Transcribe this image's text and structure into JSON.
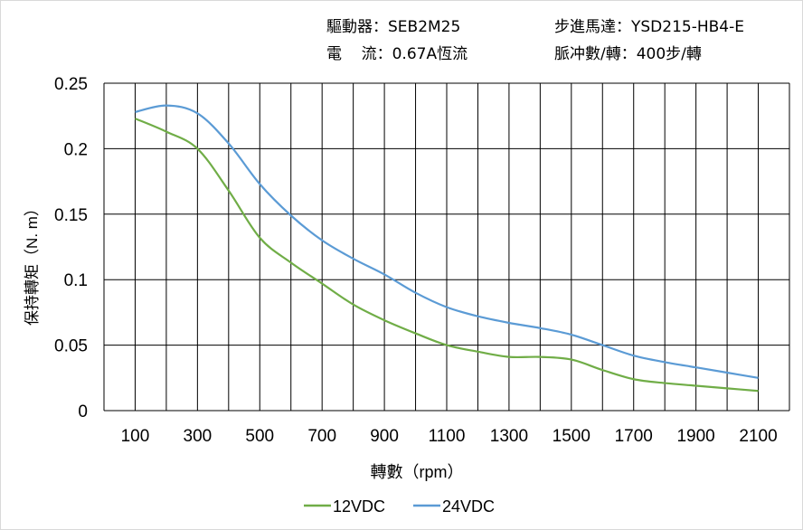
{
  "header": {
    "driver": "驅動器：SEB2M25",
    "motor": "步進馬達：YSD215-HB4-E",
    "current": "電    流：0.67A恆流",
    "pulses": "脈冲數/轉：400步/轉"
  },
  "chart_data": {
    "type": "line",
    "title": "",
    "xlabel": "轉數（rpm）",
    "ylabel": "保持轉矩（N. m）",
    "xlim": [
      0,
      2200
    ],
    "ylim": [
      0,
      0.25
    ],
    "grid": true,
    "legend_position": "bottom",
    "x_ticks": [
      "100",
      "300",
      "500",
      "700",
      "900",
      "1100",
      "1300",
      "1500",
      "1700",
      "1900",
      "2100"
    ],
    "y_ticks": [
      "0",
      "0.05",
      "0.1",
      "0.15",
      "0.2",
      "0.25"
    ],
    "x": [
      100,
      200,
      300,
      400,
      500,
      600,
      700,
      800,
      900,
      1000,
      1100,
      1200,
      1300,
      1400,
      1500,
      1600,
      1700,
      1800,
      1900,
      2000,
      2100
    ],
    "series": [
      {
        "name": "12VDC",
        "color": "#70ad47",
        "values": [
          0.223,
          0.213,
          0.2,
          0.168,
          0.132,
          0.113,
          0.097,
          0.081,
          0.069,
          0.059,
          0.05,
          0.045,
          0.041,
          0.041,
          0.039,
          0.031,
          0.024,
          0.021,
          0.019,
          0.017,
          0.015
        ]
      },
      {
        "name": "24VDC",
        "color": "#5b9bd5",
        "values": [
          0.228,
          0.233,
          0.227,
          0.204,
          0.173,
          0.149,
          0.13,
          0.116,
          0.104,
          0.09,
          0.079,
          0.072,
          0.067,
          0.063,
          0.058,
          0.05,
          0.042,
          0.037,
          0.033,
          0.029,
          0.025
        ]
      }
    ]
  }
}
